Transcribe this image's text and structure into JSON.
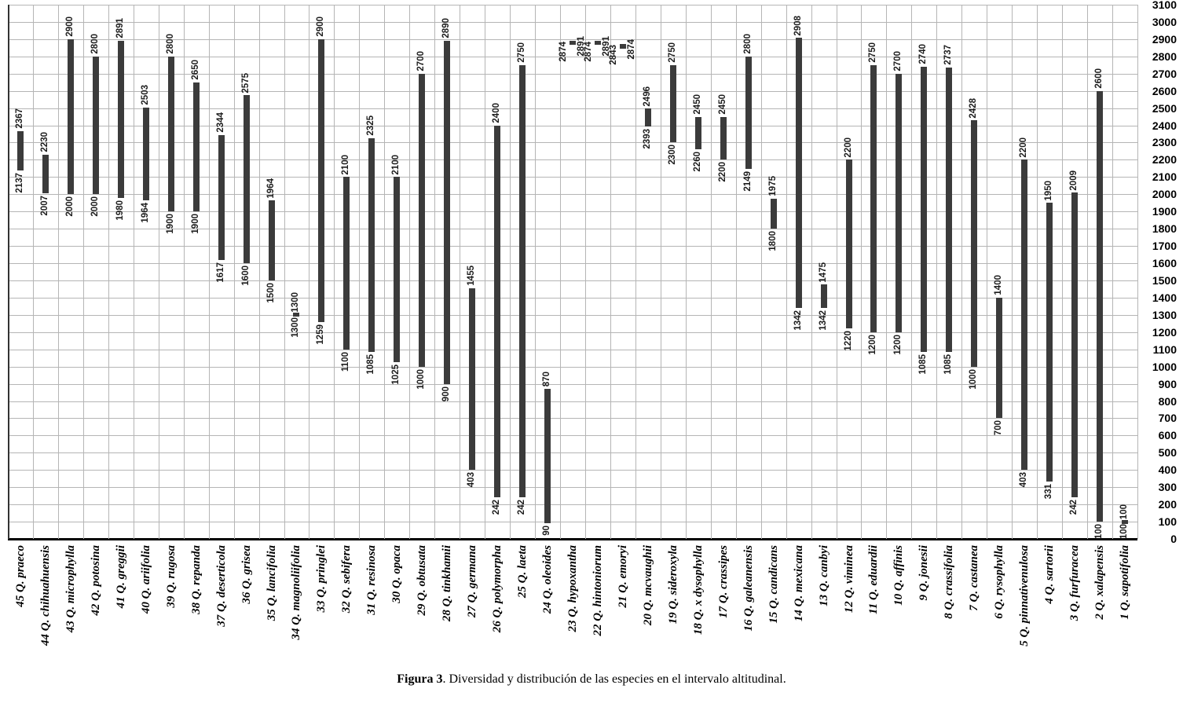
{
  "figure": {
    "caption_bold": "Figura 3",
    "caption_rest": ". Diversidad y distribución de las especies en el intervalo altitudinal."
  },
  "chart_data": {
    "type": "bar",
    "subtype": "vertical-floating-range-columns",
    "title": "",
    "xlabel": "",
    "ylabel": "",
    "ylim": [
      0,
      3100
    ],
    "ytick_step": 100,
    "yticks": [
      3100,
      3000,
      2900,
      2800,
      2700,
      2600,
      2500,
      2400,
      2300,
      2200,
      2100,
      2000,
      1900,
      1800,
      1700,
      1600,
      1500,
      1400,
      1300,
      1200,
      1100,
      1000,
      900,
      800,
      700,
      600,
      500,
      400,
      300,
      200,
      100,
      0
    ],
    "yticks_side": "right",
    "grid": true,
    "grid_color": "#b5b5b5",
    "bar_color": "#3b3b3b",
    "species": [
      {
        "label": "45 Q. praeco",
        "min": 2137,
        "max": 2367
      },
      {
        "label": "44 Q. chihuahuensis",
        "min": 2007,
        "max": 2230
      },
      {
        "label": "43 Q. microphylla",
        "min": 2000,
        "max": 2900
      },
      {
        "label": "42 Q. potosina",
        "min": 2000,
        "max": 2800
      },
      {
        "label": "41 Q. greggii",
        "min": 1980,
        "max": 2891
      },
      {
        "label": "40 Q. ariifolia",
        "min": 1964,
        "max": 2503
      },
      {
        "label": "39 Q. rugosa",
        "min": 1900,
        "max": 2800
      },
      {
        "label": "38 Q. repanda",
        "min": 1900,
        "max": 2650
      },
      {
        "label": "37 Q. deserticola",
        "min": 1617,
        "max": 2344
      },
      {
        "label": "36 Q. grisea",
        "min": 1600,
        "max": 2575
      },
      {
        "label": "35 Q. lancifolia",
        "min": 1500,
        "max": 1964
      },
      {
        "label": "34 Q. magnoliifolia",
        "min": 1300,
        "max": 1300
      },
      {
        "label": "33 Q. pringlei",
        "min": 1259,
        "max": 2900
      },
      {
        "label": "32 Q. sebifera",
        "min": 1100,
        "max": 2100
      },
      {
        "label": "31 Q. resinosa",
        "min": 1085,
        "max": 2325
      },
      {
        "label": "30 Q. opaca",
        "min": 1025,
        "max": 2100
      },
      {
        "label": "29 Q. obtusata",
        "min": 1000,
        "max": 2700
      },
      {
        "label": "28 Q. tinkhamii",
        "min": 900,
        "max": 2890
      },
      {
        "label": "27 Q. germana",
        "min": 403,
        "max": 1455
      },
      {
        "label": "26 Q. polymorpha",
        "min": 242,
        "max": 2400
      },
      {
        "label": "25 Q. laeta",
        "min": 242,
        "max": 2750
      },
      {
        "label": "24 Q. oleoides",
        "min": 90,
        "max": 870
      },
      {
        "label": "23 Q. hypoxantha",
        "min": 2874,
        "max": 2891
      },
      {
        "label": "22 Q. hintoniorum",
        "min": 2874,
        "max": 2891
      },
      {
        "label": "21 Q. emoryi",
        "min": 2843,
        "max": 2874
      },
      {
        "label": "20 Q. mcvaughii",
        "min": 2393,
        "max": 2496
      },
      {
        "label": "19 Q. sideroxyla",
        "min": 2300,
        "max": 2750
      },
      {
        "label": "18 Q. x dysophylla",
        "min": 2260,
        "max": 2450
      },
      {
        "label": "17 Q. crassipes",
        "min": 2200,
        "max": 2450
      },
      {
        "label": "16 Q. galeanensis",
        "min": 2149,
        "max": 2800
      },
      {
        "label": "15 Q. candicans",
        "min": 1800,
        "max": 1975
      },
      {
        "label": "14 Q. mexicana",
        "min": 1342,
        "max": 2908
      },
      {
        "label": "13 Q. canbyi",
        "min": 1342,
        "max": 1475
      },
      {
        "label": "12 Q. viminea",
        "min": 1220,
        "max": 2200
      },
      {
        "label": "11 Q. eduardii",
        "min": 1200,
        "max": 2750
      },
      {
        "label": "10 Q. affinis",
        "min": 1200,
        "max": 2700
      },
      {
        "label": "9 Q. jonesii",
        "min": 1085,
        "max": 2740
      },
      {
        "label": "8 Q. crassifolia",
        "min": 1085,
        "max": 2737
      },
      {
        "label": "7 Q. castanea",
        "min": 1000,
        "max": 2428
      },
      {
        "label": "6 Q. rysophylla",
        "min": 700,
        "max": 1400
      },
      {
        "label": "5 Q. pinnativenulosa",
        "min": 403,
        "max": 2200
      },
      {
        "label": "4 Q. sartorii",
        "min": 331,
        "max": 1950
      },
      {
        "label": "3 Q. furfuracea",
        "min": 242,
        "max": 2009
      },
      {
        "label": "2 Q. xalapensis",
        "min": 100,
        "max": 2600
      },
      {
        "label": "1 Q. sapotifolia",
        "min": 100,
        "max": 100
      }
    ]
  }
}
